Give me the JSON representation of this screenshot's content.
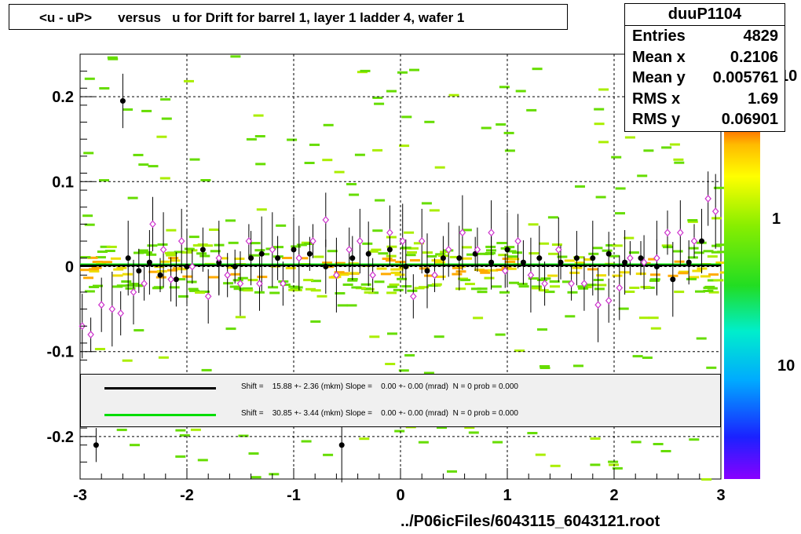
{
  "title": "<u - uP>       versus   u for Drift for barrel 1, layer 1 ladder 4, wafer 1",
  "stats": {
    "name": "duuP1104",
    "rows": [
      {
        "label": "Entries",
        "value": "4829"
      },
      {
        "label": "Mean x",
        "value": "0.2106"
      },
      {
        "label": "Mean y",
        "value": "0.005761"
      },
      {
        "label": "RMS x",
        "value": "1.69"
      },
      {
        "label": "RMS y",
        "value": "0.06901"
      }
    ]
  },
  "footer": "../P06icFiles/6043115_6043121.root",
  "legend": [
    {
      "color": "#000000",
      "text": "Shift =    15.88 +- 2.36 (mkm) Slope =    0.00 +- 0.00 (mrad)  N = 0 prob = 0.000"
    },
    {
      "color": "#00dd00",
      "text": "Shift =    30.85 +- 3.44 (mkm) Slope =    0.00 +- 0.00 (mrad)  N = 0 prob = 0.000"
    }
  ],
  "colors": {
    "marker_black": "#000000",
    "marker_open": "#cc33cc",
    "hist": "#66dd00",
    "fit_black": "#000000",
    "fit_green": "#00dd00"
  },
  "chart_data": {
    "type": "scatter",
    "xlim": [
      -3,
      3
    ],
    "ylim": [
      -0.25,
      0.25
    ],
    "x_ticks": [
      -3,
      -2,
      -1,
      0,
      1,
      2,
      3
    ],
    "y_ticks": [
      -0.2,
      -0.1,
      0,
      0.1,
      0.2
    ],
    "x_tick_labels": [
      "-3",
      "-2",
      "-1",
      "0",
      "1",
      "2",
      "3"
    ],
    "y_tick_labels": [
      "-0.2",
      "-0.1",
      "0",
      "0.1",
      "0.2"
    ],
    "grid": true,
    "colorbar_labels": [
      "10",
      "1",
      "10"
    ],
    "series": [
      {
        "marker": "filled-circle",
        "points": [
          [
            -2.85,
            -0.21
          ],
          [
            -2.6,
            0.195
          ],
          [
            -2.55,
            0.01
          ],
          [
            -2.45,
            -0.005
          ],
          [
            -2.35,
            0.005
          ],
          [
            -2.25,
            -0.01
          ],
          [
            -2.1,
            -0.015
          ],
          [
            -2.0,
            0.0
          ],
          [
            -1.85,
            0.02
          ],
          [
            -1.7,
            0.005
          ],
          [
            -1.55,
            0.0
          ],
          [
            -1.4,
            0.01
          ],
          [
            -1.3,
            0.015
          ],
          [
            -1.15,
            0.01
          ],
          [
            -1.0,
            0.02
          ],
          [
            -0.85,
            0.015
          ],
          [
            -0.7,
            0.0
          ],
          [
            -0.55,
            -0.21
          ],
          [
            -0.45,
            0.01
          ],
          [
            -0.3,
            0.015
          ],
          [
            -0.1,
            0.02
          ],
          [
            0.05,
            0.0
          ],
          [
            0.25,
            -0.005
          ],
          [
            0.4,
            0.01
          ],
          [
            0.55,
            0.01
          ],
          [
            0.7,
            0.015
          ],
          [
            0.85,
            0.005
          ],
          [
            1.0,
            0.02
          ],
          [
            1.15,
            0.005
          ],
          [
            1.3,
            0.01
          ],
          [
            1.5,
            0.005
          ],
          [
            1.65,
            0.01
          ],
          [
            1.8,
            0.01
          ],
          [
            1.95,
            0.015
          ],
          [
            2.1,
            0.005
          ],
          [
            2.25,
            0.01
          ],
          [
            2.4,
            0.0
          ],
          [
            2.55,
            -0.015
          ],
          [
            2.7,
            0.005
          ],
          [
            2.82,
            0.03
          ]
        ]
      },
      {
        "marker": "open-diamond",
        "points": [
          [
            -2.98,
            -0.07
          ],
          [
            -2.9,
            -0.08
          ],
          [
            -2.8,
            -0.045
          ],
          [
            -2.7,
            -0.05
          ],
          [
            -2.62,
            -0.055
          ],
          [
            -2.5,
            -0.03
          ],
          [
            -2.4,
            -0.02
          ],
          [
            -2.32,
            0.05
          ],
          [
            -2.22,
            0.02
          ],
          [
            -2.15,
            -0.015
          ],
          [
            -2.05,
            0.03
          ],
          [
            -1.95,
            0.0
          ],
          [
            -1.8,
            -0.035
          ],
          [
            -1.7,
            0.01
          ],
          [
            -1.62,
            -0.01
          ],
          [
            -1.5,
            -0.02
          ],
          [
            -1.42,
            0.03
          ],
          [
            -1.32,
            -0.02
          ],
          [
            -1.2,
            0.02
          ],
          [
            -1.1,
            -0.02
          ],
          [
            -0.95,
            0.01
          ],
          [
            -0.82,
            0.03
          ],
          [
            -0.7,
            0.055
          ],
          [
            -0.6,
            -0.01
          ],
          [
            -0.48,
            0.02
          ],
          [
            -0.38,
            0.03
          ],
          [
            -0.26,
            -0.01
          ],
          [
            -0.1,
            0.04
          ],
          [
            0.02,
            0.03
          ],
          [
            0.12,
            -0.035
          ],
          [
            0.2,
            0.03
          ],
          [
            0.32,
            -0.01
          ],
          [
            0.45,
            0.02
          ],
          [
            0.58,
            0.04
          ],
          [
            0.72,
            0.02
          ],
          [
            0.85,
            0.04
          ],
          [
            0.98,
            -0.005
          ],
          [
            1.1,
            0.03
          ],
          [
            1.22,
            -0.01
          ],
          [
            1.35,
            -0.02
          ],
          [
            1.48,
            0.02
          ],
          [
            1.6,
            -0.02
          ],
          [
            1.72,
            -0.02
          ],
          [
            1.85,
            -0.045
          ],
          [
            1.95,
            -0.04
          ],
          [
            2.05,
            -0.025
          ],
          [
            2.15,
            0.01
          ],
          [
            2.28,
            0.005
          ],
          [
            2.4,
            0.01
          ],
          [
            2.5,
            0.04
          ],
          [
            2.62,
            0.04
          ],
          [
            2.75,
            0.03
          ],
          [
            2.88,
            0.08
          ],
          [
            2.95,
            0.065
          ]
        ]
      }
    ]
  }
}
